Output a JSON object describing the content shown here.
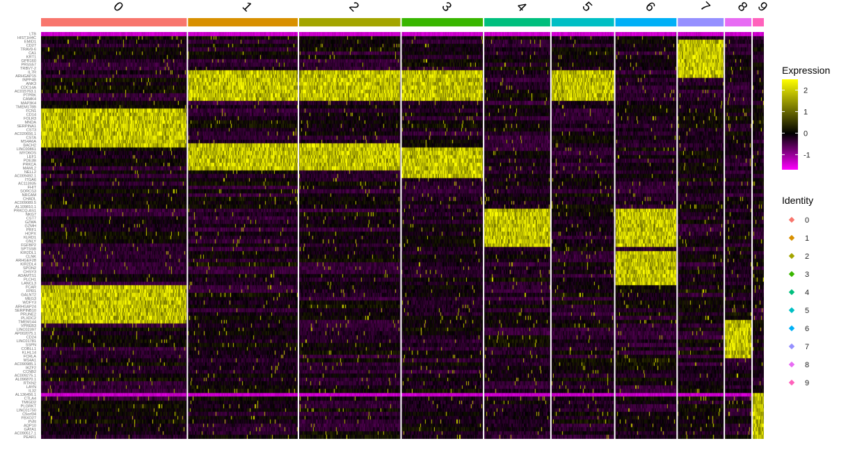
{
  "chart_data": {
    "type": "heatmap",
    "clusters": [
      {
        "id": "0",
        "color": "#F8766D",
        "cells": 210
      },
      {
        "id": "1",
        "color": "#D89000",
        "cells": 158
      },
      {
        "id": "2",
        "color": "#A3A500",
        "cells": 146
      },
      {
        "id": "3",
        "color": "#39B600",
        "cells": 117
      },
      {
        "id": "4",
        "color": "#00BF7D",
        "cells": 95
      },
      {
        "id": "5",
        "color": "#00BFC4",
        "cells": 90
      },
      {
        "id": "6",
        "color": "#00B0F6",
        "cells": 88
      },
      {
        "id": "7",
        "color": "#9590FF",
        "cells": 66
      },
      {
        "id": "8",
        "color": "#E76BF3",
        "cells": 38
      },
      {
        "id": "9",
        "color": "#FF62BC",
        "cells": 16
      }
    ],
    "genes": [
      "LTB",
      "HIST1H4C",
      "EMID1",
      "CD27",
      "TRAV8-6",
      "CA1",
      "KRT1",
      "GPR160",
      "PRSS57",
      "TRBV7-2",
      "IL7R",
      "ARHGAP15",
      "INPP4B",
      "ANK3",
      "CDC14A",
      "AC015763.1",
      "PTPRK",
      "CAMK4",
      "MAP3K4",
      "TMEM178B",
      "FCN1",
      "CD14",
      "FOLR3",
      "MNDA",
      "SERPINA1",
      "CST3",
      "AC020656.1",
      "CSTA",
      "MS4A6A",
      "BACH2",
      "LINC00861",
      "MYO6OS",
      "LEF1",
      "PDE3B",
      "PRKCA",
      "MAML2",
      "NELL2",
      "AC009492.1",
      "ITGA6",
      "AC113935",
      "FHIT",
      "SORCS3",
      "NRCAM",
      "CHADL",
      "AC009089.5",
      "AL109810.1",
      "PRKCQ-AS1",
      "NKG7",
      "CST7",
      "GZMA",
      "GZMH",
      "PRF1",
      "HOPX",
      "KLRD1",
      "GNLY",
      "FGFBP2",
      "SPTSSB",
      "KIR2DL1",
      "CLNK",
      "ARHGEF28",
      "KIR2DL4",
      "SPON2",
      "CHSY3",
      "ADAMTS1",
      "PLCH1",
      "LANCL3",
      "FCAR",
      "FPR1",
      "GALNT2",
      "MEG3",
      "WDFY3",
      "ARHGAP24",
      "SERPINB10",
      "PRUNE2",
      "PLXDC2",
      "TMEM144",
      "VPREB3",
      "LINC02397",
      "AP002075.1",
      "CD24",
      "LINC01781",
      "SSPN",
      "COBLL1",
      "KLHL14",
      "FCRLA",
      "MS4A1",
      "AC090985.1",
      "IKZF2",
      "CCNB2",
      "AC009275.1",
      "AL096870.1",
      "RTKN2",
      "LAYN",
      "IL32",
      "AL136456.1",
      "CTLA4",
      "TMIGD2",
      "PLGRKT",
      "LINC01750",
      "C5orf34",
      "FBXO27",
      "PVR",
      "AQP10",
      "GATA1",
      "AC090517.1",
      "PEAR1"
    ],
    "color_scale": {
      "title": "Expression",
      "ticks": [
        2,
        1,
        0,
        -1
      ],
      "range": [
        -1.7,
        2.5
      ],
      "low": "#FF00FF",
      "mid": "#000000",
      "high": "#FFFF00"
    },
    "legend": {
      "title": "Identity",
      "placement": "right"
    }
  }
}
